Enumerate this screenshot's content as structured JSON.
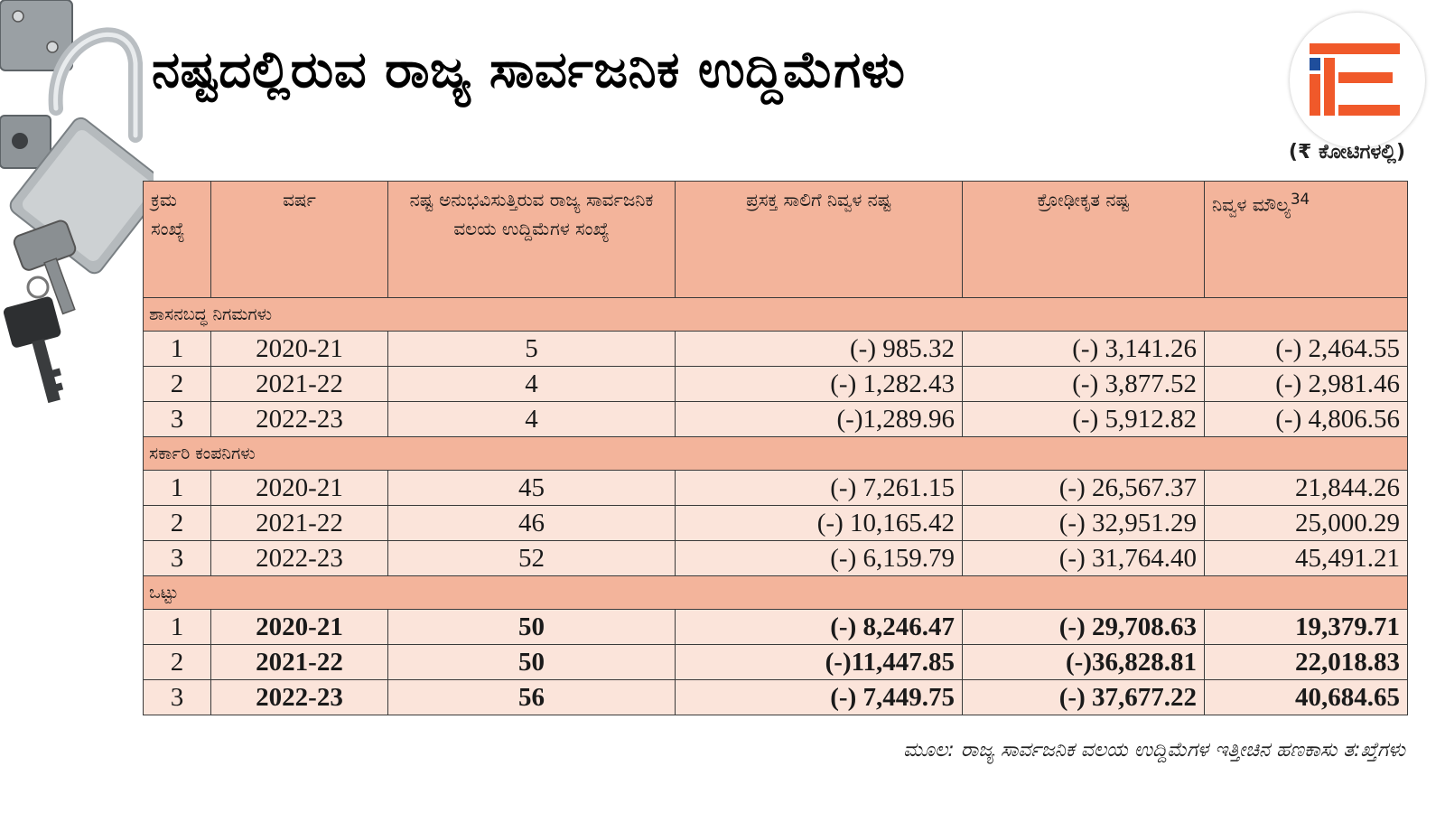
{
  "title": "ನಷ್ಟದಲ್ಲಿರುವ ರಾಜ್ಯ ಸಾರ್ವಜನಿಕ ಉದ್ದಿಮೆಗಳು",
  "unit_note": "(₹ ಕೋಟಿಗಳಲ್ಲಿ)",
  "logo": {
    "name": "ie-logo",
    "colors": {
      "orange": "#f0592a",
      "blue": "#1f4e9c"
    }
  },
  "colors": {
    "header_bg": "#f3b49b",
    "row_bg": "#fbe4da",
    "border": "#3a3a3a"
  },
  "table": {
    "headers": {
      "sl_no": "ಕ್ರಮ ಸಂಖ್ಯೆ",
      "year": "ವರ್ಷ",
      "count": "ನಷ್ಟ ಅನುಭವಿಸುತ್ತಿರುವ ರಾಜ್ಯ ಸಾರ್ವಜನಿಕ ವಲಯ ಉದ್ದಿಮೆಗಳ ಸಂಖ್ಯೆ",
      "net_loss": "ಪ್ರಸಕ್ತ ಸಾಲಿಗೆ ನಿವ್ವಳ ನಷ್ಟ",
      "cumulative_loss": "ಕ್ರೋಢೀಕೃತ ನಷ್ಟ",
      "net_worth": "ನಿವ್ವಳ ಮೌಲ್ಯ",
      "net_worth_sup": "34"
    },
    "sections": [
      {
        "label": "ಶಾಸನಬದ್ಧ ನಿಗಮಗಳು",
        "rows": [
          {
            "no": "1",
            "year": "2020-21",
            "count": "5",
            "net_loss": "(-) 985.32",
            "cumulative_loss": "(-) 3,141.26",
            "net_worth": "(-) 2,464.55"
          },
          {
            "no": "2",
            "year": "2021-22",
            "count": "4",
            "net_loss": "(-) 1,282.43",
            "cumulative_loss": "(-) 3,877.52",
            "net_worth": "(-) 2,981.46"
          },
          {
            "no": "3",
            "year": "2022-23",
            "count": "4",
            "net_loss": "(-)1,289.96",
            "cumulative_loss": "(-) 5,912.82",
            "net_worth": "(-) 4,806.56"
          }
        ]
      },
      {
        "label": "ಸರ್ಕಾರಿ ಕಂಪನಿಗಳು",
        "rows": [
          {
            "no": "1",
            "year": "2020-21",
            "count": "45",
            "net_loss": "(-) 7,261.15",
            "cumulative_loss": "(-) 26,567.37",
            "net_worth": "21,844.26"
          },
          {
            "no": "2",
            "year": "2021-22",
            "count": "46",
            "net_loss": "(-) 10,165.42",
            "cumulative_loss": "(-) 32,951.29",
            "net_worth": "25,000.29"
          },
          {
            "no": "3",
            "year": "2022-23",
            "count": "52",
            "net_loss": "(-) 6,159.79",
            "cumulative_loss": "(-) 31,764.40",
            "net_worth": "45,491.21"
          }
        ]
      },
      {
        "label": "ಒಟ್ಟು",
        "rows": [
          {
            "no": "1",
            "year": "2020-21",
            "count": "50",
            "net_loss": "(-) 8,246.47",
            "cumulative_loss": "(-) 29,708.63",
            "net_worth": "19,379.71"
          },
          {
            "no": "2",
            "year": "2021-22",
            "count": "50",
            "net_loss": "(-)11,447.85",
            "cumulative_loss": "(-)36,828.81",
            "net_worth": "22,018.83"
          },
          {
            "no": "3",
            "year": "2022-23",
            "count": "56",
            "net_loss": "(-) 7,449.75",
            "cumulative_loss": "(-) 37,677.22",
            "net_worth": "40,684.65"
          }
        ]
      }
    ]
  },
  "source": "ಮೂಲ: ರಾಜ್ಯ ಸಾರ್ವಜನಿಕ ವಲಯ ಉದ್ದಿಮೆಗಳ ಇತ್ತೀಚಿನ ಹಣಕಾಸು ತ:ಖ್ತೆಗಳು"
}
